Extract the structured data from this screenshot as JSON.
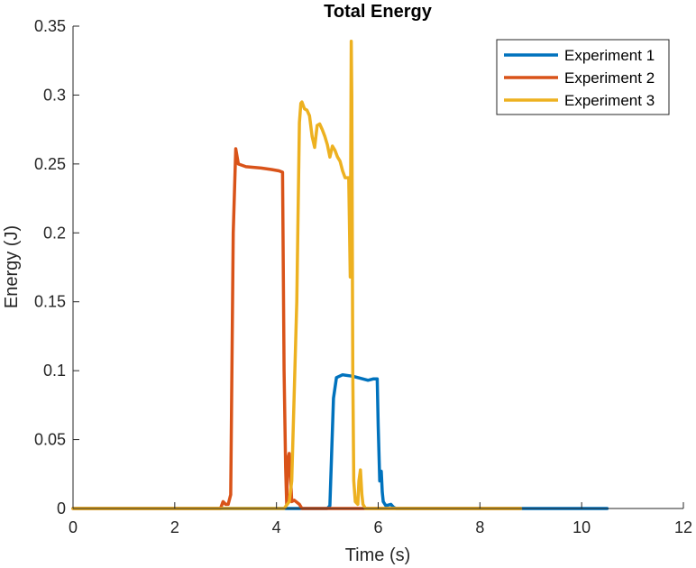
{
  "chart_data": {
    "type": "line",
    "title": "Total Energy",
    "xlabel": "Time (s)",
    "ylabel": "Energy (J)",
    "xlim": [
      0,
      12
    ],
    "ylim": [
      0,
      0.35
    ],
    "xticks": [
      0,
      2,
      4,
      6,
      8,
      10,
      12
    ],
    "xtick_labels": [
      "0",
      "2",
      "4",
      "6",
      "8",
      "10",
      "12"
    ],
    "yticks": [
      0,
      0.05,
      0.1,
      0.15,
      0.2,
      0.25,
      0.3,
      0.35
    ],
    "ytick_labels": [
      "0",
      "0.05",
      "0.1",
      "0.15",
      "0.2",
      "0.25",
      "0.3",
      "0.35"
    ],
    "grid": false,
    "legend_location": "top-right",
    "series": [
      {
        "name": "Experiment 1",
        "color": "#0072BD",
        "x": [
          0,
          5.0,
          5.05,
          5.12,
          5.18,
          5.3,
          5.5,
          5.7,
          5.8,
          5.9,
          5.98,
          6.0,
          6.03,
          6.06,
          6.08,
          6.1,
          6.15,
          6.25,
          6.3,
          6.35,
          10.5
        ],
        "y": [
          0,
          0,
          0.002,
          0.08,
          0.095,
          0.097,
          0.096,
          0.094,
          0.093,
          0.094,
          0.094,
          0.06,
          0.02,
          0.027,
          0.012,
          0.005,
          0.002,
          0.003,
          0.001,
          0,
          0
        ]
      },
      {
        "name": "Experiment 2",
        "color": "#D95319",
        "x": [
          0,
          2.9,
          2.95,
          3.0,
          3.05,
          3.1,
          3.15,
          3.2,
          3.25,
          3.4,
          3.7,
          3.9,
          4.05,
          4.12,
          4.15,
          4.18,
          4.2,
          4.22,
          4.25,
          4.28,
          4.3,
          4.35,
          4.45,
          4.5,
          8.8
        ],
        "y": [
          0,
          0,
          0.005,
          0.003,
          0.003,
          0.01,
          0.2,
          0.261,
          0.25,
          0.248,
          0.247,
          0.246,
          0.245,
          0.244,
          0.1,
          0.03,
          0.003,
          0.035,
          0.04,
          0.02,
          0.005,
          0.006,
          0.003,
          0,
          0
        ]
      },
      {
        "name": "Experiment 3",
        "color": "#EDB120",
        "x": [
          0,
          4.15,
          4.25,
          4.3,
          4.4,
          4.45,
          4.48,
          4.5,
          4.55,
          4.6,
          4.65,
          4.7,
          4.75,
          4.8,
          4.85,
          4.9,
          4.95,
          5.0,
          5.05,
          5.1,
          5.15,
          5.2,
          5.25,
          5.3,
          5.35,
          5.4,
          5.42,
          5.45,
          5.47,
          5.48,
          5.5,
          5.52,
          5.55,
          5.6,
          5.62,
          5.65,
          5.68,
          5.7,
          5.75,
          8.8
        ],
        "y": [
          0,
          0,
          0.005,
          0.02,
          0.15,
          0.28,
          0.294,
          0.295,
          0.29,
          0.289,
          0.285,
          0.27,
          0.262,
          0.278,
          0.279,
          0.275,
          0.27,
          0.264,
          0.255,
          0.263,
          0.26,
          0.255,
          0.252,
          0.245,
          0.24,
          0.24,
          0.24,
          0.168,
          0.339,
          0.3,
          0.1,
          0.02,
          0.005,
          0.003,
          0.02,
          0.028,
          0.01,
          0.003,
          0,
          0
        ]
      }
    ]
  }
}
